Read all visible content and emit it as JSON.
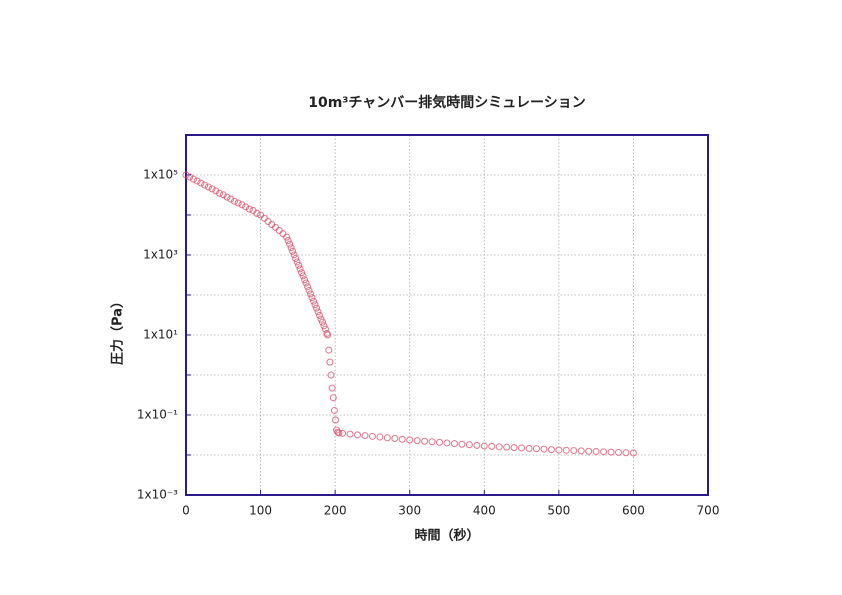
{
  "chart_data": {
    "type": "scatter",
    "title": "10m³チャンバー排気時間シミュレーション",
    "x_label": "時間（秒）",
    "y_label": "圧力（Pa）",
    "xlim": [
      0,
      700
    ],
    "xticks": [
      0,
      100,
      200,
      300,
      400,
      500,
      600,
      700
    ],
    "ylim": [
      0.001,
      1000000
    ],
    "y_scale": "log",
    "yticks": [
      {
        "value": 0.001,
        "label": "1x10⁻³"
      },
      {
        "value": 0.1,
        "label": "1x10⁻¹"
      },
      {
        "value": 10,
        "label": "1x10¹"
      },
      {
        "value": 1000,
        "label": "1x10³"
      },
      {
        "value": 100000,
        "label": "1x10⁵"
      }
    ],
    "minor_yticks": [
      0.01,
      1,
      100,
      10000,
      1000000
    ],
    "grid": true,
    "series": [
      {
        "name": "圧力",
        "color": "#d9536f",
        "x": [
          0,
          5,
          10,
          15,
          20,
          25,
          30,
          35,
          40,
          45,
          50,
          55,
          60,
          65,
          70,
          75,
          80,
          85,
          90,
          95,
          100,
          105,
          110,
          115,
          120,
          125,
          130,
          135,
          137,
          139,
          141,
          143,
          145,
          147,
          149,
          151,
          153,
          155,
          157,
          159,
          161,
          163,
          165,
          167,
          169,
          171,
          173,
          175,
          177,
          179,
          181,
          183,
          185,
          187,
          189,
          190,
          191.5,
          193,
          194.5,
          196,
          197.5,
          199,
          200.5,
          202,
          203.5,
          205,
          210,
          220,
          230,
          240,
          250,
          260,
          270,
          280,
          290,
          300,
          310,
          320,
          330,
          340,
          350,
          360,
          370,
          380,
          390,
          400,
          410,
          420,
          430,
          440,
          450,
          460,
          470,
          480,
          490,
          500,
          510,
          520,
          530,
          540,
          550,
          560,
          570,
          580,
          590,
          600
        ],
        "values": [
          100000,
          89000,
          79000,
          71000,
          63000,
          56000,
          50000,
          45000,
          40000,
          35000,
          32000,
          28000,
          25000,
          22000,
          20000,
          18000,
          16000,
          14000,
          13000,
          11000,
          10000,
          8300,
          6900,
          5800,
          4900,
          4100,
          3400,
          2800,
          2300,
          1870,
          1520,
          1240,
          1010,
          820,
          670,
          550,
          450,
          360,
          300,
          240,
          200,
          160,
          130,
          106,
          86,
          70,
          57,
          47,
          38,
          31,
          25,
          21,
          17,
          14,
          11,
          10,
          4.2,
          2.1,
          1,
          0.47,
          0.27,
          0.13,
          0.075,
          0.042,
          0.037,
          0.0355,
          0.0348,
          0.0333,
          0.0319,
          0.0306,
          0.0293,
          0.0281,
          0.0269,
          0.0258,
          0.0248,
          0.0237,
          0.0229,
          0.0221,
          0.0214,
          0.0207,
          0.02,
          0.0193,
          0.0186,
          0.018,
          0.0174,
          0.0168,
          0.0164,
          0.016,
          0.0157,
          0.0153,
          0.015,
          0.0146,
          0.0143,
          0.014,
          0.0136,
          0.0133,
          0.0131,
          0.0129,
          0.0127,
          0.0124,
          0.0122,
          0.012,
          0.0118,
          0.0116,
          0.0114,
          0.0112
        ]
      }
    ]
  }
}
